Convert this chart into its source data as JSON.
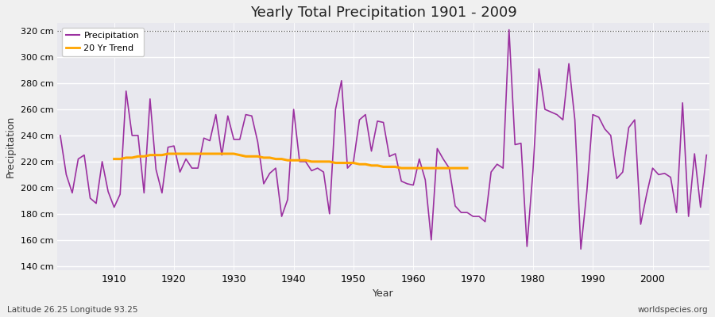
{
  "title": "Yearly Total Precipitation 1901 - 2009",
  "xlabel": "Year",
  "ylabel": "Precipitation",
  "subtitle_left": "Latitude 26.25 Longitude 93.25",
  "subtitle_right": "worldspecies.org",
  "precip_color": "#9B30A0",
  "trend_color": "#FFA500",
  "fig_bg": "#F0F0F0",
  "plot_bg": "#E8E8EE",
  "ylim": [
    137,
    326
  ],
  "yticks": [
    140,
    160,
    180,
    200,
    220,
    240,
    260,
    280,
    300,
    320
  ],
  "ytick_labels": [
    "140 cm",
    "160 cm",
    "180 cm",
    "200 cm",
    "220 cm",
    "240 cm",
    "260 cm",
    "280 cm",
    "300 cm",
    "320 cm"
  ],
  "years": [
    1901,
    1902,
    1903,
    1904,
    1905,
    1906,
    1907,
    1908,
    1909,
    1910,
    1911,
    1912,
    1913,
    1914,
    1915,
    1916,
    1917,
    1918,
    1919,
    1920,
    1921,
    1922,
    1923,
    1924,
    1925,
    1926,
    1927,
    1928,
    1929,
    1930,
    1931,
    1932,
    1933,
    1934,
    1935,
    1936,
    1937,
    1938,
    1939,
    1940,
    1941,
    1942,
    1943,
    1944,
    1945,
    1946,
    1947,
    1948,
    1949,
    1950,
    1951,
    1952,
    1953,
    1954,
    1955,
    1956,
    1957,
    1958,
    1959,
    1960,
    1961,
    1962,
    1963,
    1964,
    1965,
    1966,
    1967,
    1968,
    1969,
    1970,
    1971,
    1972,
    1973,
    1974,
    1975,
    1976,
    1977,
    1978,
    1979,
    1980,
    1981,
    1982,
    1983,
    1984,
    1985,
    1986,
    1987,
    1988,
    1989,
    1990,
    1991,
    1992,
    1993,
    1994,
    1995,
    1996,
    1997,
    1998,
    1999,
    2000,
    2001,
    2002,
    2003,
    2004,
    2005,
    2006,
    2007,
    2008,
    2009
  ],
  "precip": [
    240,
    210,
    196,
    222,
    225,
    192,
    188,
    220,
    197,
    185,
    195,
    274,
    240,
    240,
    196,
    268,
    214,
    196,
    231,
    232,
    212,
    222,
    215,
    215,
    238,
    236,
    256,
    225,
    255,
    237,
    237,
    256,
    255,
    235,
    203,
    211,
    215,
    178,
    191,
    260,
    220,
    220,
    213,
    215,
    212,
    180,
    260,
    282,
    215,
    220,
    252,
    256,
    228,
    251,
    250,
    224,
    226,
    205,
    203,
    202,
    222,
    206,
    160,
    230,
    222,
    215,
    186,
    181,
    181,
    178,
    178,
    174,
    212,
    218,
    215,
    321,
    233,
    234,
    155,
    213,
    291,
    260,
    258,
    256,
    252,
    295,
    252,
    153,
    197,
    256,
    254,
    245,
    240,
    207,
    212,
    246,
    252,
    172,
    195,
    215,
    210,
    211,
    208,
    181,
    265,
    178,
    226,
    185,
    225
  ],
  "trend_years": [
    1910,
    1911,
    1912,
    1913,
    1914,
    1915,
    1916,
    1917,
    1918,
    1919,
    1920,
    1921,
    1922,
    1923,
    1924,
    1925,
    1926,
    1927,
    1928,
    1929,
    1930,
    1931,
    1932,
    1933,
    1934,
    1935,
    1936,
    1937,
    1938,
    1939,
    1940,
    1941,
    1942,
    1943,
    1944,
    1945,
    1946,
    1947,
    1948,
    1949,
    1950,
    1951,
    1952,
    1953,
    1954,
    1955,
    1956,
    1957,
    1958,
    1959,
    1960,
    1961,
    1962,
    1963,
    1964,
    1965,
    1966,
    1967,
    1968,
    1969
  ],
  "trend": [
    222,
    222,
    223,
    223,
    224,
    224,
    225,
    225,
    225,
    226,
    226,
    226,
    226,
    226,
    226,
    226,
    226,
    226,
    226,
    226,
    226,
    225,
    224,
    224,
    224,
    223,
    223,
    222,
    222,
    221,
    221,
    221,
    221,
    220,
    220,
    220,
    220,
    219,
    219,
    219,
    219,
    218,
    218,
    217,
    217,
    216,
    216,
    216,
    215,
    215,
    215,
    215,
    215,
    215,
    215,
    215,
    215,
    215,
    215,
    215
  ]
}
